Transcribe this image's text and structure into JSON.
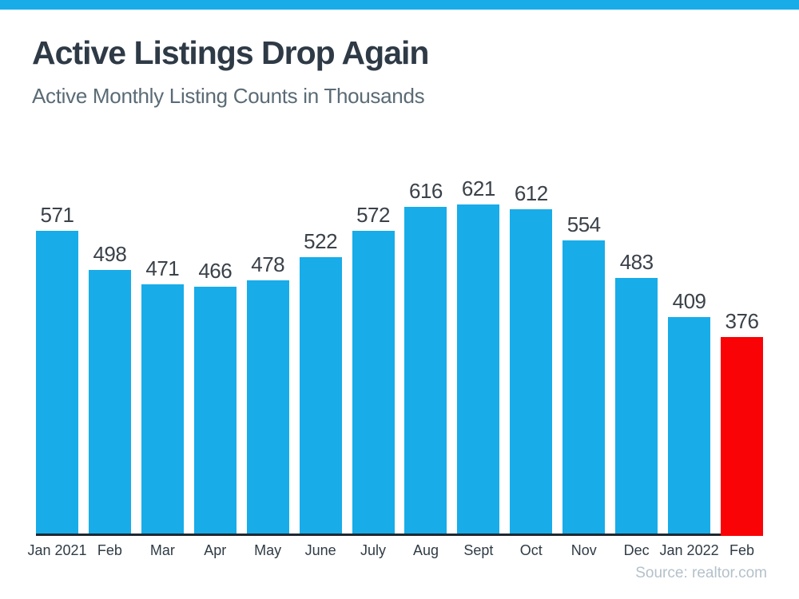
{
  "header": {
    "title": "Active Listings Drop Again",
    "subtitle": "Active Monthly Listing Counts in Thousands"
  },
  "chart_data": {
    "type": "bar",
    "title": "Active Listings Drop Again",
    "subtitle": "Active Monthly Listing Counts in Thousands",
    "categories": [
      "Jan 2021",
      "Feb",
      "Mar",
      "Apr",
      "May",
      "June",
      "July",
      "Aug",
      "Sept",
      "Oct",
      "Nov",
      "Dec",
      "Jan 2022",
      "Feb"
    ],
    "values": [
      571,
      498,
      471,
      466,
      478,
      522,
      572,
      616,
      621,
      612,
      554,
      483,
      409,
      376
    ],
    "ylim": [
      0,
      621
    ],
    "xlabel": "",
    "ylabel": "",
    "grid": false,
    "legend": false,
    "value_labels_shown": true,
    "bar_color": "#18ACE9",
    "highlight_index": 13,
    "highlight_color": "#F90306",
    "source": "Source: realtor.com"
  },
  "colors": {
    "title": "#2E3A46",
    "subtitle": "#5A6B76",
    "value_label": "#3A4149",
    "axis_label": "#2F3B45",
    "axis_line": "#1F2830",
    "source": "#B4C1CA",
    "background": "#FFFFFF"
  }
}
